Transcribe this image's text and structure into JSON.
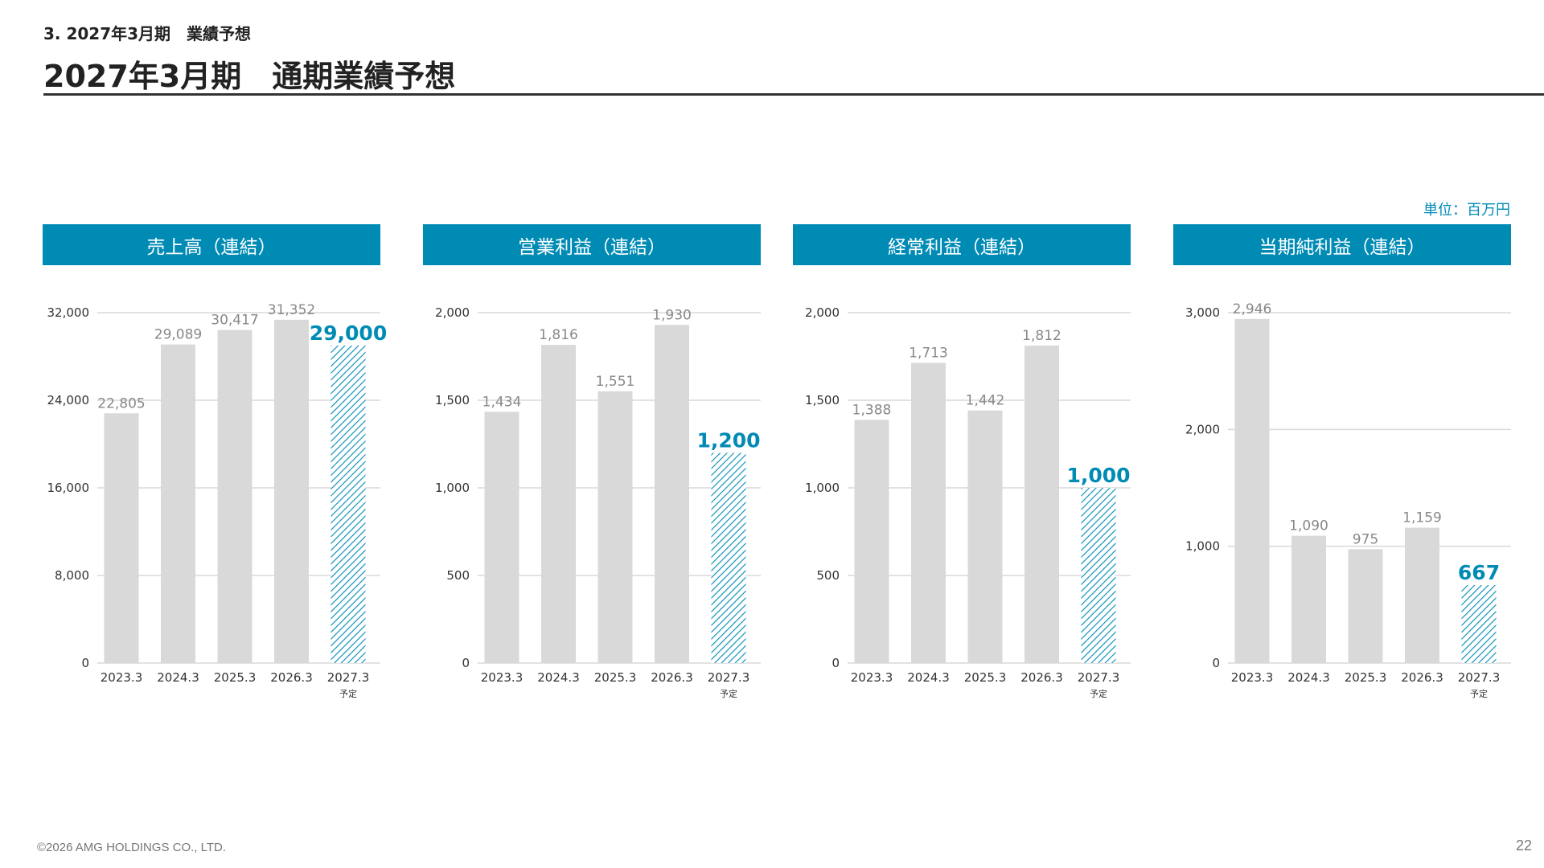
{
  "header": {
    "section_label": "3. 2027年3月期　業績予想",
    "title": "2027年3月期　通期業績予想"
  },
  "unit_label": "単位：百万円",
  "colors": {
    "accent": "#008bb5",
    "bar": "#d9d9d9",
    "grid": "#d9d9d9",
    "label": "#888888",
    "axis_text": "#333333"
  },
  "chart_data": [
    {
      "type": "bar",
      "title": "売上高（連結）",
      "categories": [
        "2023.3",
        "2024.3",
        "2025.3",
        "2026.3",
        "2027.3"
      ],
      "forecast_note": "予定",
      "values": [
        22805,
        29089,
        30417,
        31352,
        29000
      ],
      "value_labels": [
        "22,805",
        "29,089",
        "30,417",
        "31,352",
        "29,000"
      ],
      "forecast_index": 4,
      "ylim": [
        0,
        32000
      ],
      "yticks": [
        0,
        8000,
        16000,
        24000,
        32000
      ],
      "ytick_labels": [
        "0",
        "8,000",
        "16,000",
        "24,000",
        "32,000"
      ],
      "grid": true
    },
    {
      "type": "bar",
      "title": "営業利益（連結）",
      "categories": [
        "2023.3",
        "2024.3",
        "2025.3",
        "2026.3",
        "2027.3"
      ],
      "forecast_note": "予定",
      "values": [
        1434,
        1816,
        1551,
        1930,
        1200
      ],
      "value_labels": [
        "1,434",
        "1,816",
        "1,551",
        "1,930",
        "1,200"
      ],
      "forecast_index": 4,
      "ylim": [
        0,
        2000
      ],
      "yticks": [
        0,
        500,
        1000,
        1500,
        2000
      ],
      "ytick_labels": [
        "0",
        "500",
        "1,000",
        "1,500",
        "2,000"
      ],
      "grid": true
    },
    {
      "type": "bar",
      "title": "経常利益（連結）",
      "categories": [
        "2023.3",
        "2024.3",
        "2025.3",
        "2026.3",
        "2027.3"
      ],
      "forecast_note": "予定",
      "values": [
        1388,
        1713,
        1442,
        1812,
        1000
      ],
      "value_labels": [
        "1,388",
        "1,713",
        "1,442",
        "1,812",
        "1,000"
      ],
      "forecast_index": 4,
      "ylim": [
        0,
        2000
      ],
      "yticks": [
        0,
        500,
        1000,
        1500,
        2000
      ],
      "ytick_labels": [
        "0",
        "500",
        "1,000",
        "1,500",
        "2,000"
      ],
      "grid": true
    },
    {
      "type": "bar",
      "title": "当期純利益（連結）",
      "categories": [
        "2023.3",
        "2024.3",
        "2025.3",
        "2026.3",
        "2027.3"
      ],
      "forecast_note": "予定",
      "values": [
        2946,
        1090,
        975,
        1159,
        667
      ],
      "value_labels": [
        "2,946",
        "1,090",
        "975",
        "1,159",
        "667"
      ],
      "forecast_index": 4,
      "ylim": [
        0,
        3000
      ],
      "yticks": [
        0,
        1000,
        2000,
        3000
      ],
      "ytick_labels": [
        "0",
        "1,000",
        "2,000",
        "3,000"
      ],
      "grid": true
    }
  ],
  "footer": {
    "copyright": "©2026 AMG HOLDINGS CO., LTD.",
    "page_number": "22"
  }
}
